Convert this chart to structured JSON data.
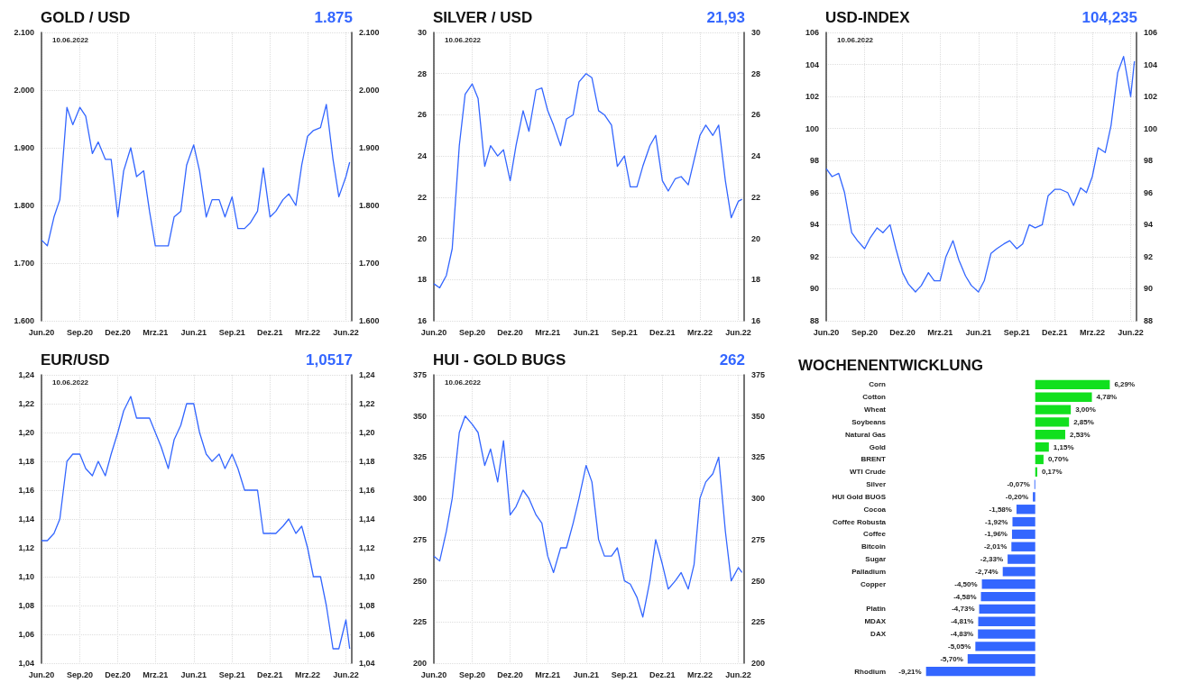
{
  "chart_data": [
    {
      "type": "line",
      "title": "GOLD / USD",
      "subtitle": "1.875",
      "annotations": [
        "10.06.2022"
      ],
      "x": [
        "2020-06-01",
        "2020-06-15",
        "2020-07-01",
        "2020-07-15",
        "2020-08-01",
        "2020-08-15",
        "2020-09-01",
        "2020-09-15",
        "2020-10-01",
        "2020-10-15",
        "2020-11-01",
        "2020-11-15",
        "2020-12-01",
        "2020-12-15",
        "2021-01-01",
        "2021-01-15",
        "2021-02-01",
        "2021-02-15",
        "2021-03-01",
        "2021-03-15",
        "2021-04-01",
        "2021-04-15",
        "2021-05-01",
        "2021-05-15",
        "2021-06-01",
        "2021-06-15",
        "2021-07-01",
        "2021-07-15",
        "2021-08-01",
        "2021-08-15",
        "2021-09-01",
        "2021-09-15",
        "2021-10-01",
        "2021-10-15",
        "2021-11-01",
        "2021-11-15",
        "2021-12-01",
        "2021-12-15",
        "2022-01-01",
        "2022-01-15",
        "2022-02-01",
        "2022-02-15",
        "2022-03-01",
        "2022-03-15",
        "2022-04-01",
        "2022-04-15",
        "2022-05-01",
        "2022-05-15",
        "2022-06-01",
        "2022-06-10"
      ],
      "series": [
        {
          "color": "#3366ff",
          "values": [
            1740,
            1730,
            1780,
            1810,
            1970,
            1940,
            1970,
            1955,
            1890,
            1910,
            1880,
            1880,
            1780,
            1860,
            1900,
            1850,
            1860,
            1790,
            1730,
            1730,
            1730,
            1780,
            1790,
            1870,
            1905,
            1860,
            1780,
            1810,
            1810,
            1780,
            1815,
            1760,
            1760,
            1770,
            1790,
            1865,
            1780,
            1790,
            1810,
            1820,
            1800,
            1870,
            1920,
            1930,
            1935,
            1975,
            1880,
            1815,
            1850,
            1875
          ]
        }
      ],
      "xlim": [
        "2020-06-01",
        "2022-06-15"
      ],
      "xticks": [
        {
          "value": "2020-06-01",
          "label": "Jun.20"
        },
        {
          "value": "2020-09-01",
          "label": "Sep.20"
        },
        {
          "value": "2020-12-01",
          "label": "Dez.20"
        },
        {
          "value": "2021-03-01",
          "label": "Mrz.21"
        },
        {
          "value": "2021-06-01",
          "label": "Jun.21"
        },
        {
          "value": "2021-09-01",
          "label": "Sep.21"
        },
        {
          "value": "2021-12-01",
          "label": "Dez.21"
        },
        {
          "value": "2022-03-01",
          "label": "Mrz.22"
        },
        {
          "value": "2022-06-01",
          "label": "Jun.22"
        }
      ],
      "ylim": [
        1600,
        2100
      ],
      "yticks": [
        {
          "value": 1600,
          "label": "1.600"
        },
        {
          "value": 1700,
          "label": "1.700"
        },
        {
          "value": 1800,
          "label": "1.800"
        },
        {
          "value": 1900,
          "label": "1.900"
        },
        {
          "value": 2000,
          "label": "2.000"
        },
        {
          "value": 2100,
          "label": "2.100"
        }
      ],
      "y2lim": [
        1600,
        2100
      ],
      "y2ticks": [
        {
          "value": 1600,
          "label": "1.600"
        },
        {
          "value": 1700,
          "label": "1.700"
        },
        {
          "value": 1800,
          "label": "1.800"
        },
        {
          "value": 1900,
          "label": "1.900"
        },
        {
          "value": 2000,
          "label": "2.000"
        },
        {
          "value": 2100,
          "label": "2.100"
        }
      ],
      "grid": true
    },
    {
      "type": "line",
      "title": "SILVER / USD",
      "subtitle": "21,93",
      "annotations": [
        "10.06.2022"
      ],
      "x": [
        "2020-06-01",
        "2020-06-15",
        "2020-07-01",
        "2020-07-15",
        "2020-08-01",
        "2020-08-15",
        "2020-09-01",
        "2020-09-15",
        "2020-10-01",
        "2020-10-15",
        "2020-11-01",
        "2020-11-15",
        "2020-12-01",
        "2020-12-15",
        "2021-01-01",
        "2021-01-15",
        "2021-02-01",
        "2021-02-15",
        "2021-03-01",
        "2021-03-15",
        "2021-04-01",
        "2021-04-15",
        "2021-05-01",
        "2021-05-15",
        "2021-06-01",
        "2021-06-15",
        "2021-07-01",
        "2021-07-15",
        "2021-08-01",
        "2021-08-15",
        "2021-09-01",
        "2021-09-15",
        "2021-10-01",
        "2021-10-15",
        "2021-11-01",
        "2021-11-15",
        "2021-12-01",
        "2021-12-15",
        "2022-01-01",
        "2022-01-15",
        "2022-02-01",
        "2022-02-15",
        "2022-03-01",
        "2022-03-15",
        "2022-04-01",
        "2022-04-15",
        "2022-05-01",
        "2022-05-15",
        "2022-06-01",
        "2022-06-10"
      ],
      "series": [
        {
          "color": "#3366ff",
          "values": [
            17.8,
            17.6,
            18.2,
            19.5,
            24.5,
            27.0,
            27.5,
            26.8,
            23.5,
            24.5,
            24.0,
            24.3,
            22.8,
            24.5,
            26.2,
            25.2,
            27.2,
            27.3,
            26.2,
            25.5,
            24.5,
            25.8,
            26.0,
            27.6,
            28.0,
            27.8,
            26.2,
            26.0,
            25.5,
            23.5,
            24.0,
            22.5,
            22.5,
            23.5,
            24.5,
            25.0,
            22.8,
            22.3,
            22.9,
            23.0,
            22.6,
            23.8,
            25.0,
            25.5,
            25.0,
            25.5,
            22.8,
            21.0,
            21.8,
            21.9
          ]
        }
      ],
      "xlim": [
        "2020-06-01",
        "2022-06-15"
      ],
      "xticks": [
        {
          "value": "2020-06-01",
          "label": "Jun.20"
        },
        {
          "value": "2020-09-01",
          "label": "Sep.20"
        },
        {
          "value": "2020-12-01",
          "label": "Dez.20"
        },
        {
          "value": "2021-03-01",
          "label": "Mrz.21"
        },
        {
          "value": "2021-06-01",
          "label": "Jun.21"
        },
        {
          "value": "2021-09-01",
          "label": "Sep.21"
        },
        {
          "value": "2021-12-01",
          "label": "Dez.21"
        },
        {
          "value": "2022-03-01",
          "label": "Mrz.22"
        },
        {
          "value": "2022-06-01",
          "label": "Jun.22"
        }
      ],
      "ylim": [
        16,
        30
      ],
      "yticks": [
        16,
        18,
        20,
        22,
        24,
        26,
        28,
        30
      ],
      "y2lim": [
        16,
        30
      ],
      "y2ticks": [
        16,
        18,
        20,
        22,
        24,
        26,
        28,
        30
      ],
      "grid": true
    },
    {
      "type": "line",
      "title": "USD-INDEX",
      "subtitle": "104,235",
      "annotations": [
        "10.06.2022"
      ],
      "x": [
        "2020-06-01",
        "2020-06-15",
        "2020-07-01",
        "2020-07-15",
        "2020-08-01",
        "2020-08-15",
        "2020-09-01",
        "2020-09-15",
        "2020-10-01",
        "2020-10-15",
        "2020-11-01",
        "2020-11-15",
        "2020-12-01",
        "2020-12-15",
        "2021-01-01",
        "2021-01-15",
        "2021-02-01",
        "2021-02-15",
        "2021-03-01",
        "2021-03-15",
        "2021-04-01",
        "2021-04-15",
        "2021-05-01",
        "2021-05-15",
        "2021-06-01",
        "2021-06-15",
        "2021-07-01",
        "2021-07-15",
        "2021-08-01",
        "2021-08-15",
        "2021-09-01",
        "2021-09-15",
        "2021-10-01",
        "2021-10-15",
        "2021-11-01",
        "2021-11-15",
        "2021-12-01",
        "2021-12-15",
        "2022-01-01",
        "2022-01-15",
        "2022-02-01",
        "2022-02-15",
        "2022-03-01",
        "2022-03-15",
        "2022-04-01",
        "2022-04-15",
        "2022-05-01",
        "2022-05-15",
        "2022-06-01",
        "2022-06-10"
      ],
      "series": [
        {
          "color": "#3366ff",
          "values": [
            97.5,
            97.0,
            97.2,
            96.0,
            93.5,
            93.0,
            92.5,
            93.2,
            93.8,
            93.5,
            94.0,
            92.5,
            91.0,
            90.3,
            89.8,
            90.2,
            91.0,
            90.5,
            90.5,
            92.0,
            93.0,
            91.8,
            90.8,
            90.2,
            89.8,
            90.5,
            92.2,
            92.5,
            92.8,
            93.0,
            92.5,
            92.8,
            94.0,
            93.8,
            94.0,
            95.8,
            96.2,
            96.2,
            96.0,
            95.2,
            96.3,
            96.0,
            97.0,
            98.8,
            98.5,
            100.2,
            103.5,
            104.5,
            102.0,
            104.2
          ]
        }
      ],
      "xlim": [
        "2020-06-01",
        "2022-06-15"
      ],
      "xticks": [
        {
          "value": "2020-06-01",
          "label": "Jun.20"
        },
        {
          "value": "2020-09-01",
          "label": "Sep.20"
        },
        {
          "value": "2020-12-01",
          "label": "Dez.20"
        },
        {
          "value": "2021-03-01",
          "label": "Mrz.21"
        },
        {
          "value": "2021-06-01",
          "label": "Jun.21"
        },
        {
          "value": "2021-09-01",
          "label": "Sep.21"
        },
        {
          "value": "2021-12-01",
          "label": "Dez.21"
        },
        {
          "value": "2022-03-01",
          "label": "Mrz.22"
        },
        {
          "value": "2022-06-01",
          "label": "Jun.22"
        }
      ],
      "ylim": [
        88,
        106
      ],
      "yticks": [
        88,
        90,
        92,
        94,
        96,
        98,
        100,
        102,
        104,
        106
      ],
      "y2lim": [
        88,
        106
      ],
      "y2ticks": [
        88,
        90,
        92,
        94,
        96,
        98,
        100,
        102,
        104,
        106
      ],
      "grid": true
    },
    {
      "type": "line",
      "title": "EUR/USD",
      "subtitle": "1,0517",
      "annotations": [
        "10.06.2022"
      ],
      "x": [
        "2020-06-01",
        "2020-06-15",
        "2020-07-01",
        "2020-07-15",
        "2020-08-01",
        "2020-08-15",
        "2020-09-01",
        "2020-09-15",
        "2020-10-01",
        "2020-10-15",
        "2020-11-01",
        "2020-11-15",
        "2020-12-01",
        "2020-12-15",
        "2021-01-01",
        "2021-01-15",
        "2021-02-01",
        "2021-02-15",
        "2021-03-01",
        "2021-03-15",
        "2021-04-01",
        "2021-04-15",
        "2021-05-01",
        "2021-05-15",
        "2021-06-01",
        "2021-06-15",
        "2021-07-01",
        "2021-07-15",
        "2021-08-01",
        "2021-08-15",
        "2021-09-01",
        "2021-09-15",
        "2021-10-01",
        "2021-10-15",
        "2021-11-01",
        "2021-11-15",
        "2021-12-01",
        "2021-12-15",
        "2022-01-01",
        "2022-01-15",
        "2022-02-01",
        "2022-02-15",
        "2022-03-01",
        "2022-03-15",
        "2022-04-01",
        "2022-04-15",
        "2022-05-01",
        "2022-05-15",
        "2022-06-01",
        "2022-06-10"
      ],
      "series": [
        {
          "color": "#3366ff",
          "values": [
            1.125,
            1.125,
            1.13,
            1.14,
            1.18,
            1.185,
            1.185,
            1.175,
            1.17,
            1.18,
            1.17,
            1.185,
            1.2,
            1.215,
            1.225,
            1.21,
            1.21,
            1.21,
            1.2,
            1.19,
            1.175,
            1.195,
            1.205,
            1.22,
            1.22,
            1.2,
            1.185,
            1.18,
            1.185,
            1.175,
            1.185,
            1.175,
            1.16,
            1.16,
            1.16,
            1.13,
            1.13,
            1.13,
            1.135,
            1.14,
            1.13,
            1.135,
            1.12,
            1.1,
            1.1,
            1.08,
            1.05,
            1.05,
            1.07,
            1.05
          ]
        }
      ],
      "xlim": [
        "2020-06-01",
        "2022-06-15"
      ],
      "xticks": [
        {
          "value": "2020-06-01",
          "label": "Jun.20"
        },
        {
          "value": "2020-09-01",
          "label": "Sep.20"
        },
        {
          "value": "2020-12-01",
          "label": "Dez.20"
        },
        {
          "value": "2021-03-01",
          "label": "Mrz.21"
        },
        {
          "value": "2021-06-01",
          "label": "Jun.21"
        },
        {
          "value": "2021-09-01",
          "label": "Sep.21"
        },
        {
          "value": "2021-12-01",
          "label": "Dez.21"
        },
        {
          "value": "2022-03-01",
          "label": "Mrz.22"
        },
        {
          "value": "2022-06-01",
          "label": "Jun.22"
        }
      ],
      "ylim": [
        1.04,
        1.24
      ],
      "yticks": [
        {
          "value": 1.04,
          "label": "1,04"
        },
        {
          "value": 1.06,
          "label": "1,06"
        },
        {
          "value": 1.08,
          "label": "1,08"
        },
        {
          "value": 1.1,
          "label": "1,10"
        },
        {
          "value": 1.12,
          "label": "1,12"
        },
        {
          "value": 1.14,
          "label": "1,14"
        },
        {
          "value": 1.16,
          "label": "1,16"
        },
        {
          "value": 1.18,
          "label": "1,18"
        },
        {
          "value": 1.2,
          "label": "1,20"
        },
        {
          "value": 1.22,
          "label": "1,22"
        },
        {
          "value": 1.24,
          "label": "1,24"
        }
      ],
      "y2lim": [
        1.04,
        1.24
      ],
      "y2ticks": [
        {
          "value": 1.04,
          "label": "1,04"
        },
        {
          "value": 1.06,
          "label": "1,06"
        },
        {
          "value": 1.08,
          "label": "1,08"
        },
        {
          "value": 1.1,
          "label": "1,10"
        },
        {
          "value": 1.12,
          "label": "1,12"
        },
        {
          "value": 1.14,
          "label": "1,14"
        },
        {
          "value": 1.16,
          "label": "1,16"
        },
        {
          "value": 1.18,
          "label": "1,18"
        },
        {
          "value": 1.2,
          "label": "1,20"
        },
        {
          "value": 1.22,
          "label": "1,22"
        },
        {
          "value": 1.24,
          "label": "1,24"
        }
      ],
      "grid": true
    },
    {
      "type": "line",
      "title": "HUI - GOLD BUGS",
      "subtitle": "262",
      "annotations": [
        "10.06.2022"
      ],
      "x": [
        "2020-06-01",
        "2020-06-15",
        "2020-07-01",
        "2020-07-15",
        "2020-08-01",
        "2020-08-15",
        "2020-09-01",
        "2020-09-15",
        "2020-10-01",
        "2020-10-15",
        "2020-11-01",
        "2020-11-15",
        "2020-12-01",
        "2020-12-15",
        "2021-01-01",
        "2021-01-15",
        "2021-02-01",
        "2021-02-15",
        "2021-03-01",
        "2021-03-15",
        "2021-04-01",
        "2021-04-15",
        "2021-05-01",
        "2021-05-15",
        "2021-06-01",
        "2021-06-15",
        "2021-07-01",
        "2021-07-15",
        "2021-08-01",
        "2021-08-15",
        "2021-09-01",
        "2021-09-15",
        "2021-10-01",
        "2021-10-15",
        "2021-11-01",
        "2021-11-15",
        "2021-12-01",
        "2021-12-15",
        "2022-01-01",
        "2022-01-15",
        "2022-02-01",
        "2022-02-15",
        "2022-03-01",
        "2022-03-15",
        "2022-04-01",
        "2022-04-15",
        "2022-05-01",
        "2022-05-15",
        "2022-06-01",
        "2022-06-10"
      ],
      "series": [
        {
          "color": "#3366ff",
          "values": [
            265,
            262,
            280,
            300,
            340,
            350,
            345,
            340,
            320,
            330,
            310,
            335,
            290,
            295,
            305,
            300,
            290,
            285,
            265,
            255,
            270,
            270,
            285,
            300,
            320,
            310,
            275,
            265,
            265,
            270,
            250,
            248,
            240,
            228,
            250,
            275,
            260,
            245,
            250,
            255,
            245,
            260,
            300,
            310,
            315,
            325,
            280,
            250,
            258,
            255
          ]
        }
      ],
      "xlim": [
        "2020-06-01",
        "2022-06-15"
      ],
      "xticks": [
        {
          "value": "2020-06-01",
          "label": "Jun.20"
        },
        {
          "value": "2020-09-01",
          "label": "Sep.20"
        },
        {
          "value": "2020-12-01",
          "label": "Dez.20"
        },
        {
          "value": "2021-03-01",
          "label": "Mrz.21"
        },
        {
          "value": "2021-06-01",
          "label": "Jun.21"
        },
        {
          "value": "2021-09-01",
          "label": "Sep.21"
        },
        {
          "value": "2021-12-01",
          "label": "Dez.21"
        },
        {
          "value": "2022-03-01",
          "label": "Mrz.22"
        },
        {
          "value": "2022-06-01",
          "label": "Jun.22"
        }
      ],
      "ylim": [
        200,
        375
      ],
      "yticks": [
        200,
        225,
        250,
        275,
        300,
        325,
        350,
        375
      ],
      "y2lim": [
        200,
        375
      ],
      "y2ticks": [
        200,
        225,
        250,
        275,
        300,
        325,
        350,
        375
      ],
      "grid": true
    },
    {
      "type": "bar",
      "orientation": "horizontal",
      "title": "WOCHENENTWICKLUNG",
      "tick_labels": "y",
      "categories": [
        "Corn",
        "Cotton",
        "Wheat",
        "Soybeans",
        "Natural Gas",
        "Gold",
        "BRENT",
        "WTI Crude",
        "Silver",
        "HUI Gold BUGS",
        "Cocoa",
        "Coffee Robusta",
        "Coffee",
        "Bitcoin",
        "Sugar",
        "Palladium",
        "Copper",
        null,
        "Platin",
        "MDAX",
        "DAX",
        null,
        null,
        "Rhodium"
      ],
      "values": [
        6.29,
        4.78,
        3.0,
        2.85,
        2.53,
        1.15,
        0.7,
        0.17,
        -0.07,
        -0.2,
        -1.58,
        -1.92,
        -1.96,
        -2.01,
        -2.33,
        -2.74,
        -4.5,
        -4.58,
        -4.73,
        -4.81,
        -4.83,
        -5.05,
        -5.7,
        -9.21
      ],
      "value_labels": [
        "6,29%",
        "4,78%",
        "3,00%",
        "2,85%",
        "2,53%",
        "1,15%",
        "0,70%",
        "0,17%",
        "-0,07%",
        "-0,20%",
        "-1,58%",
        "-1,92%",
        "-1,96%",
        "-2,01%",
        "-2,33%",
        "-2,74%",
        "-4,50%",
        "-4,58%",
        "-4,73%",
        "-4,81%",
        "-4,83%",
        "-5,05%",
        "-5,70%",
        "-9,21%"
      ],
      "colors": [
        "#11e01e",
        "#11e01e",
        "#11e01e",
        "#11e01e",
        "#11e01e",
        "#11e01e",
        "#11e01e",
        "#11e01e",
        "#3366ff",
        "#3366ff",
        "#3366ff",
        "#3366ff",
        "#3366ff",
        "#3366ff",
        "#3366ff",
        "#3366ff",
        "#3366ff",
        "#3366ff",
        "#3366ff",
        "#3366ff",
        "#3366ff",
        "#3366ff",
        "#3366ff",
        "#3366ff"
      ]
    }
  ]
}
